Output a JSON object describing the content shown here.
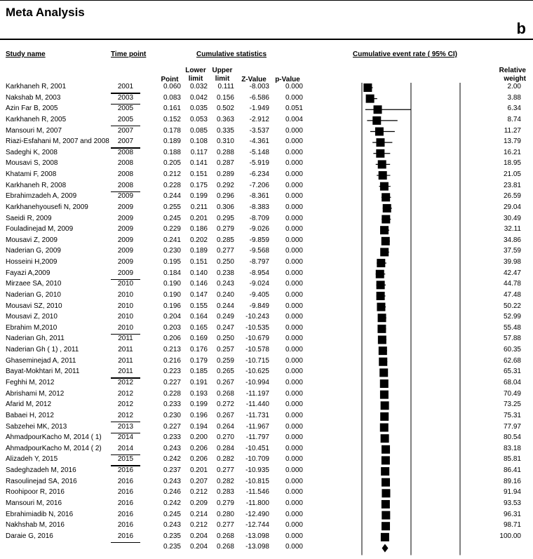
{
  "title": "Meta Analysis",
  "panel_label": "b",
  "headers": {
    "study_name": "Study name",
    "time_point": "Time point",
    "cumulative_statistics": "Cumulative statistics",
    "cumulative_event_rate": "Cumulative event rate  ( 95% CI)",
    "point": "Point",
    "lower_limit_1": "Lower",
    "lower_limit_2": "limit",
    "upper_limit_1": "Upper",
    "upper_limit_2": "limit",
    "z_value": "Z-Value",
    "p_value": "p-Value",
    "relative_weight_1": "Relative",
    "relative_weight_2": "weight"
  },
  "chart_data": {
    "type": "forest",
    "xlim": [
      0.0,
      1.0
    ],
    "x_ticks": [
      "0.00",
      "0.50",
      "1.00"
    ],
    "x_tick_values": [
      0.0,
      0.5,
      1.0
    ],
    "rows": [
      {
        "study": "Karkhaneh R, 2001",
        "time": "2001",
        "underline": true,
        "point": "0.060",
        "lower": "0.032",
        "upper": "0.111",
        "z": "-8.003",
        "p": "0.000",
        "weight": "2.00"
      },
      {
        "study": "Nakshab M, 2003",
        "time": "2003",
        "underline": true,
        "point": "0.083",
        "lower": "0.042",
        "upper": "0.156",
        "z": "-6.586",
        "p": "0.000",
        "weight": "3.88"
      },
      {
        "study": "Azin Far B, 2005",
        "time": "2005",
        "underline": false,
        "point": "0.161",
        "lower": "0.035",
        "upper": "0.502",
        "z": "-1.949",
        "p": "0.051",
        "weight": "6.34"
      },
      {
        "study": "Karkhaneh R, 2005",
        "time": "2005",
        "underline": true,
        "point": "0.152",
        "lower": "0.053",
        "upper": "0.363",
        "z": "-2.912",
        "p": "0.004",
        "weight": "8.74"
      },
      {
        "study": "Mansouri M, 2007",
        "time": "2007",
        "underline": false,
        "point": "0.178",
        "lower": "0.085",
        "upper": "0.335",
        "z": "-3.537",
        "p": "0.000",
        "weight": "11.27"
      },
      {
        "study": "Riazi-Esfahani M, 2007 and 2008",
        "time": "2007",
        "underline": true,
        "point": "0.189",
        "lower": "0.108",
        "upper": "0.310",
        "z": "-4.361",
        "p": "0.000",
        "weight": "13.79"
      },
      {
        "study": "Sadeghi K, 2008",
        "time": "2008",
        "underline": false,
        "point": "0.188",
        "lower": "0.117",
        "upper": "0.288",
        "z": "-5.148",
        "p": "0.000",
        "weight": "16.21"
      },
      {
        "study": "Mousavi S,  2008",
        "time": "2008",
        "underline": false,
        "point": "0.205",
        "lower": "0.141",
        "upper": "0.287",
        "z": "-5.919",
        "p": "0.000",
        "weight": "18.95"
      },
      {
        "study": "Khatami F, 2008",
        "time": "2008",
        "underline": false,
        "point": "0.212",
        "lower": "0.151",
        "upper": "0.289",
        "z": "-6.234",
        "p": "0.000",
        "weight": "21.05"
      },
      {
        "study": "Karkhaneh R, 2008",
        "time": "2008",
        "underline": true,
        "point": "0.228",
        "lower": "0.175",
        "upper": "0.292",
        "z": "-7.206",
        "p": "0.000",
        "weight": "23.81"
      },
      {
        "study": "Ebrahimzadeh A, 2009",
        "time": "2009",
        "underline": false,
        "point": "0.244",
        "lower": "0.199",
        "upper": "0.296",
        "z": "-8.361",
        "p": "0.000",
        "weight": "26.59"
      },
      {
        "study": "Karkhanehyousefi N, 2009",
        "time": "2009",
        "underline": false,
        "point": "0.255",
        "lower": "0.211",
        "upper": "0.306",
        "z": "-8.383",
        "p": "0.000",
        "weight": "29.04"
      },
      {
        "study": "Saeidi R, 2009",
        "time": "2009",
        "underline": false,
        "point": "0.245",
        "lower": "0.201",
        "upper": "0.295",
        "z": "-8.709",
        "p": "0.000",
        "weight": "30.49"
      },
      {
        "study": "Fouladinejad M, 2009",
        "time": "2009",
        "underline": false,
        "point": "0.229",
        "lower": "0.186",
        "upper": "0.279",
        "z": "-9.026",
        "p": "0.000",
        "weight": "32.11"
      },
      {
        "study": "Mousavi Z, 2009",
        "time": "2009",
        "underline": false,
        "point": "0.241",
        "lower": "0.202",
        "upper": "0.285",
        "z": "-9.859",
        "p": "0.000",
        "weight": "34.86"
      },
      {
        "study": "Naderian G, 2009",
        "time": "2009",
        "underline": false,
        "point": "0.230",
        "lower": "0.189",
        "upper": "0.277",
        "z": "-9.568",
        "p": "0.000",
        "weight": "37.59"
      },
      {
        "study": "Hosseini H,2009",
        "time": "2009",
        "underline": false,
        "point": "0.195",
        "lower": "0.151",
        "upper": "0.250",
        "z": "-8.797",
        "p": "0.000",
        "weight": "39.98"
      },
      {
        "study": "Fayazi A,2009",
        "time": "2009",
        "underline": true,
        "point": "0.184",
        "lower": "0.140",
        "upper": "0.238",
        "z": "-8.954",
        "p": "0.000",
        "weight": "42.47"
      },
      {
        "study": "Mirzaee SA, 2010",
        "time": "2010",
        "underline": false,
        "point": "0.190",
        "lower": "0.146",
        "upper": "0.243",
        "z": "-9.024",
        "p": "0.000",
        "weight": "44.78"
      },
      {
        "study": "Naderian G, 2010",
        "time": "2010",
        "underline": false,
        "point": "0.190",
        "lower": "0.147",
        "upper": "0.240",
        "z": "-9.405",
        "p": "0.000",
        "weight": "47.48"
      },
      {
        "study": "Mousavi SZ, 2010",
        "time": "2010",
        "underline": false,
        "point": "0.196",
        "lower": "0.155",
        "upper": "0.244",
        "z": "-9.849",
        "p": "0.000",
        "weight": "50.22"
      },
      {
        "study": "Mousavi Z, 2010",
        "time": "2010",
        "underline": false,
        "point": "0.204",
        "lower": "0.164",
        "upper": "0.249",
        "z": "-10.243",
        "p": "0.000",
        "weight": "52.99"
      },
      {
        "study": "Ebrahim M,2010",
        "time": "2010",
        "underline": true,
        "point": "0.203",
        "lower": "0.165",
        "upper": "0.247",
        "z": "-10.535",
        "p": "0.000",
        "weight": "55.48"
      },
      {
        "study": "Naderian Gh, 2011",
        "time": "2011",
        "underline": false,
        "point": "0.206",
        "lower": "0.169",
        "upper": "0.250",
        "z": "-10.679",
        "p": "0.000",
        "weight": "57.88"
      },
      {
        "study": "Naderian Gh ( 1) ,  2011",
        "time": "2011",
        "underline": false,
        "point": "0.213",
        "lower": "0.176",
        "upper": "0.257",
        "z": "-10.578",
        "p": "0.000",
        "weight": "60.35"
      },
      {
        "study": "Ghaseminejad A, 2011",
        "time": "2011",
        "underline": false,
        "point": "0.216",
        "lower": "0.179",
        "upper": "0.259",
        "z": "-10.715",
        "p": "0.000",
        "weight": "62.68"
      },
      {
        "study": "Bayat-Mokhtari M, 2011",
        "time": "2011",
        "underline": true,
        "point": "0.223",
        "lower": "0.185",
        "upper": "0.265",
        "z": "-10.625",
        "p": "0.000",
        "weight": "65.31"
      },
      {
        "study": "Feghhi M, 2012",
        "time": "2012",
        "underline": false,
        "point": "0.227",
        "lower": "0.191",
        "upper": "0.267",
        "z": "-10.994",
        "p": "0.000",
        "weight": "68.04"
      },
      {
        "study": "Abrishami M, 2012",
        "time": "2012",
        "underline": false,
        "point": "0.228",
        "lower": "0.193",
        "upper": "0.268",
        "z": "-11.197",
        "p": "0.000",
        "weight": "70.49"
      },
      {
        "study": "Afarid M, 2012",
        "time": "2012",
        "underline": false,
        "point": "0.233",
        "lower": "0.199",
        "upper": "0.272",
        "z": "-11.440",
        "p": "0.000",
        "weight": "73.25"
      },
      {
        "study": "Babaei H, 2012",
        "time": "2012",
        "underline": true,
        "point": "0.230",
        "lower": "0.196",
        "upper": "0.267",
        "z": "-11.731",
        "p": "0.000",
        "weight": "75.31"
      },
      {
        "study": "Sabzehei MK, 2013",
        "time": "2013",
        "underline": true,
        "point": "0.227",
        "lower": "0.194",
        "upper": "0.264",
        "z": "-11.967",
        "p": "0.000",
        "weight": "77.97"
      },
      {
        "study": "AhmadpourKacho M, 2014  ( 1)",
        "time": "2014",
        "underline": false,
        "point": "0.233",
        "lower": "0.200",
        "upper": "0.270",
        "z": "-11.797",
        "p": "0.000",
        "weight": "80.54"
      },
      {
        "study": "AhmadpourKacho M, 2014  ( 2)",
        "time": "2014",
        "underline": true,
        "point": "0.243",
        "lower": "0.206",
        "upper": "0.284",
        "z": "-10.451",
        "p": "0.000",
        "weight": "83.18"
      },
      {
        "study": "Alizadeh Y, 2015",
        "time": "2015",
        "underline": true,
        "point": "0.242",
        "lower": "0.206",
        "upper": "0.282",
        "z": "-10.709",
        "p": "0.000",
        "weight": "85.81"
      },
      {
        "study": "Sadeghzadeh M, 2016",
        "time": "2016",
        "underline": false,
        "point": "0.237",
        "lower": "0.201",
        "upper": "0.277",
        "z": "-10.935",
        "p": "0.000",
        "weight": "86.41"
      },
      {
        "study": "Rasoulinejad SA, 2016",
        "time": "2016",
        "underline": false,
        "point": "0.243",
        "lower": "0.207",
        "upper": "0.282",
        "z": "-10.815",
        "p": "0.000",
        "weight": "89.16"
      },
      {
        "study": "Roohipoor R, 2016",
        "time": "2016",
        "underline": false,
        "point": "0.246",
        "lower": "0.212",
        "upper": "0.283",
        "z": "-11.546",
        "p": "0.000",
        "weight": "91.94"
      },
      {
        "study": "Mansouri M, 2016",
        "time": "2016",
        "underline": false,
        "point": "0.242",
        "lower": "0.209",
        "upper": "0.279",
        "z": "-11.800",
        "p": "0.000",
        "weight": "93.53"
      },
      {
        "study": "Ebrahimiadib N, 2016",
        "time": "2016",
        "underline": false,
        "point": "0.245",
        "lower": "0.214",
        "upper": "0.280",
        "z": "-12.490",
        "p": "0.000",
        "weight": "96.31"
      },
      {
        "study": "Nakhshab M, 2016",
        "time": "2016",
        "underline": false,
        "point": "0.243",
        "lower": "0.212",
        "upper": "0.277",
        "z": "-12.744",
        "p": "0.000",
        "weight": "98.71"
      },
      {
        "study": "Daraie G, 2016",
        "time": "2016",
        "underline": true,
        "point": "0.235",
        "lower": "0.204",
        "upper": "0.268",
        "z": "-13.098",
        "p": "0.000",
        "weight": "100.00"
      }
    ],
    "summary": {
      "point": "0.235",
      "lower": "0.204",
      "upper": "0.268",
      "z": "-13.098",
      "p": "0.000"
    }
  }
}
